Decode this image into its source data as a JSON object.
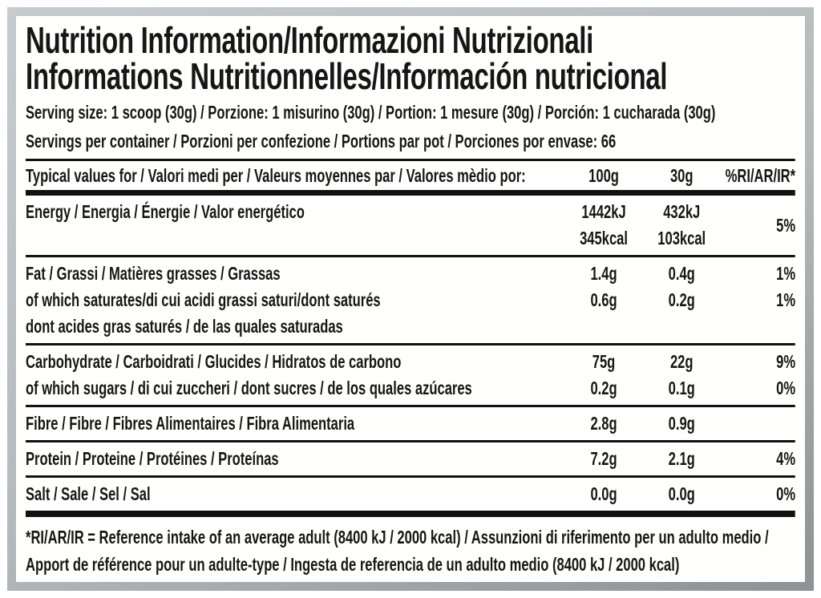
{
  "colors": {
    "text": "#161616",
    "rules": "#121212",
    "frame_gray": "#b4b9bb",
    "background": "#ffffff"
  },
  "title": {
    "line1": "Nutrition Information/Informazioni Nutrizionali",
    "line2": "Informations Nutritionnelles/Información nutricional"
  },
  "serving": {
    "size_line": "Serving size: 1 scoop (30g) / Porzione: 1 misurino (30g) / Portion: 1 mesure (30g) / Porción: 1 cucharada (30g)",
    "servings_line": "Servings per container / Porzioni per confezione / Portions par pot / Porciones por envase: 66"
  },
  "table": {
    "header": {
      "label": "Typical values for / Valori medi per / Valeurs moyennes par / Valores mèdio por:",
      "col_100g": "100g",
      "col_30g": "30g",
      "col_ri": "%RI/AR/IR*"
    },
    "groups": [
      {
        "name": "energy",
        "label_lines": [
          "Energy / Energia / Énergie / Valor energético"
        ],
        "v100": [
          "1442kJ",
          "345kcal"
        ],
        "v30": [
          "432kJ",
          "103kcal"
        ],
        "ri": [
          "5%"
        ],
        "ri_center": true
      },
      {
        "name": "fat",
        "label_lines": [
          "Fat / Grassi / Matières grasses / Grassas",
          "of which saturates/di cui acidi grassi saturi/dont saturés",
          "dont acides gras saturés / de las quales saturadas"
        ],
        "v100": [
          "1.4g",
          "0.6g"
        ],
        "v30": [
          "0.4g",
          "0.2g"
        ],
        "ri": [
          "1%",
          "1%"
        ],
        "ri_center": false
      },
      {
        "name": "carbohydrate",
        "label_lines": [
          "Carbohydrate / Carboidrati / Glucides / Hidratos de carbono",
          "of which sugars / di cui zuccheri / dont sucres / de los quales azúcares"
        ],
        "v100": [
          "75g",
          "0.2g"
        ],
        "v30": [
          "22g",
          "0.1g"
        ],
        "ri": [
          "9%",
          "0%"
        ],
        "ri_center": false
      },
      {
        "name": "fibre",
        "label_lines": [
          "Fibre / Fibre / Fibres Alimentaires / Fibra Alimentaria"
        ],
        "v100": [
          "2.8g"
        ],
        "v30": [
          "0.9g"
        ],
        "ri": [],
        "ri_center": false
      },
      {
        "name": "protein",
        "label_lines": [
          "Protein / Proteine / Protéines / Proteínas"
        ],
        "v100": [
          "7.2g"
        ],
        "v30": [
          "2.1g"
        ],
        "ri": [
          "4%"
        ],
        "ri_center": false
      },
      {
        "name": "salt",
        "label_lines": [
          "Salt / Sale / Sel / Sal"
        ],
        "v100": [
          "0.0g"
        ],
        "v30": [
          "0.0g"
        ],
        "ri": [
          "0%"
        ],
        "ri_center": false
      }
    ]
  },
  "footnote": {
    "text": "*RI/AR/IR = Reference intake of an average adult (8400 kJ / 2000 kcal)  / Assunzioni di riferimento per un adulto medio / Apport de référence pour un adulte-type / Ingesta de referencia de un adulto medio (8400 kJ / 2000 kcal)"
  }
}
